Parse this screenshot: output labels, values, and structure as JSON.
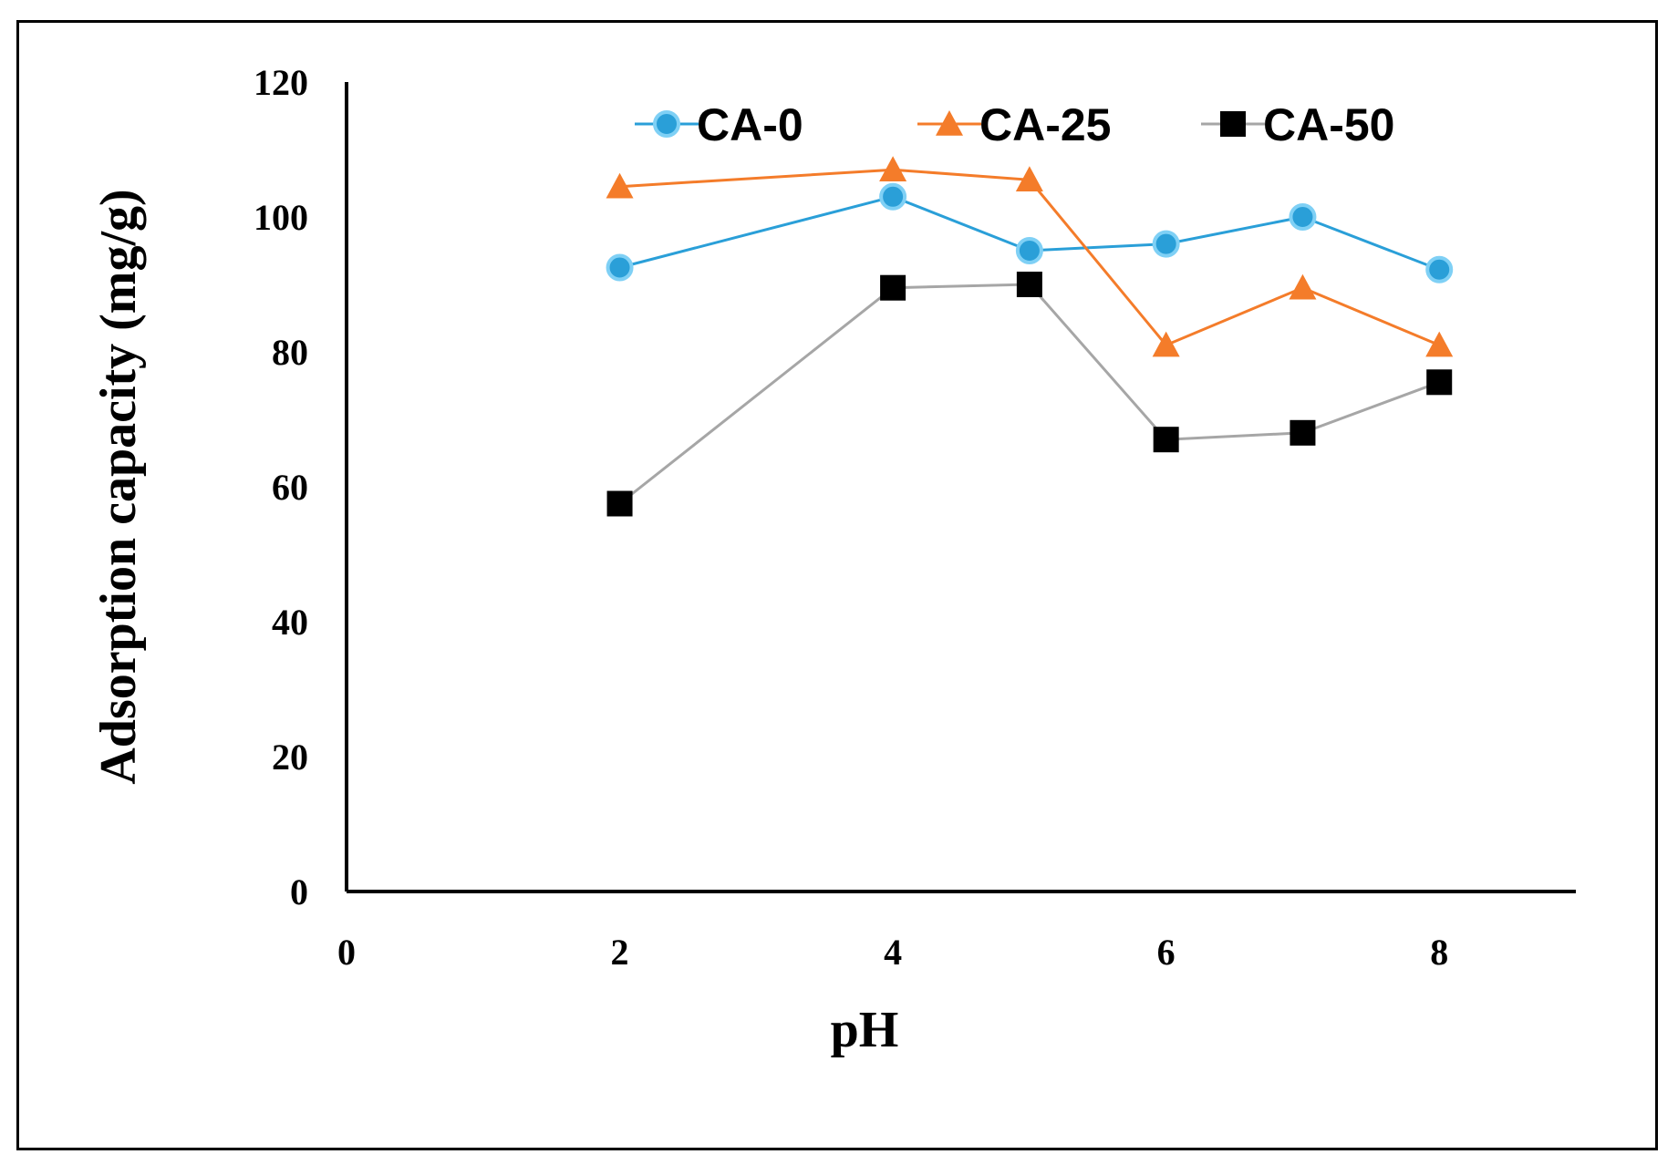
{
  "chart_data": {
    "type": "line",
    "title": "",
    "xlabel": "pH",
    "ylabel": "Adsorption capacity (mg/g)",
    "xlim": [
      0,
      9
    ],
    "ylim": [
      0,
      120
    ],
    "xticks": [
      0,
      2,
      4,
      6,
      8
    ],
    "yticks": [
      0,
      20,
      40,
      60,
      80,
      100,
      120
    ],
    "x": [
      2,
      4,
      5,
      6,
      7,
      8
    ],
    "legend_position": "top-center",
    "grid": false,
    "series": [
      {
        "name": "CA-0",
        "marker": "circle",
        "color": "#2a9fd8",
        "values": [
          92.5,
          103,
          95,
          96,
          100,
          92.2
        ]
      },
      {
        "name": "CA-25",
        "marker": "triangle",
        "color": "#f47c2a",
        "values": [
          104.5,
          107,
          105.5,
          81,
          89.5,
          81
        ]
      },
      {
        "name": "CA-50",
        "marker": "square",
        "color": "#000000",
        "line_color": "#a6a6a6",
        "values": [
          57.5,
          89.5,
          90,
          67,
          68,
          75.5
        ]
      }
    ]
  }
}
